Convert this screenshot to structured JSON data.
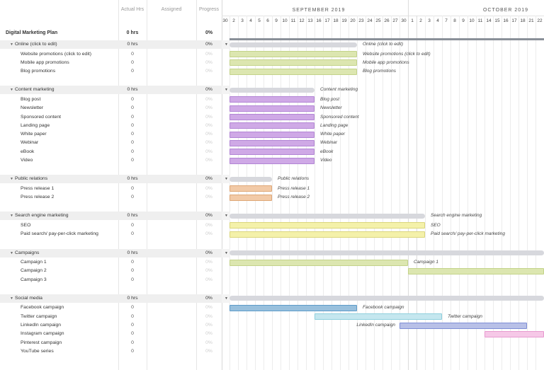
{
  "columns": {
    "actual_hrs": "Actual Hrs",
    "assigned": "Assigned",
    "progress": "Progress"
  },
  "months": [
    {
      "label": "SEPTEMBER 2019"
    },
    {
      "label": "OCTOBER 2019"
    }
  ],
  "days": [
    "30",
    "2",
    "3",
    "4",
    "5",
    "6",
    "9",
    "10",
    "11",
    "12",
    "13",
    "16",
    "17",
    "18",
    "19",
    "20",
    "23",
    "24",
    "25",
    "26",
    "27",
    "30",
    "1",
    "2",
    "3",
    "4",
    "7",
    "8",
    "9",
    "10",
    "11",
    "14",
    "15",
    "16",
    "17",
    "18",
    "21",
    "22"
  ],
  "plan": {
    "name": "Digital Marketing Plan",
    "hrs": "0 hrs",
    "progress": "0%"
  },
  "groups": [
    {
      "name": "Online (click to edit)",
      "hrs": "0 hrs",
      "progress": "0%",
      "start": 1,
      "end": 15,
      "label": "Online (click to edit)",
      "tasks": [
        {
          "name": "Website promotions (click to edit)",
          "hrs": "0",
          "progress": "0%",
          "start": 1,
          "end": 15,
          "label": "Website promotions (click to edit)",
          "color": "#dce6b0",
          "border": "#c3d38a"
        },
        {
          "name": "Mobile app promotions",
          "hrs": "0",
          "progress": "0%",
          "start": 1,
          "end": 15,
          "label": "Mobile app promotions",
          "color": "#dce6b0",
          "border": "#c3d38a"
        },
        {
          "name": "Blog promotions",
          "hrs": "0",
          "progress": "0%",
          "start": 1,
          "end": 15,
          "label": "Blog promotions",
          "color": "#dce6b0",
          "border": "#c3d38a"
        }
      ]
    },
    {
      "name": "Content marketing",
      "hrs": "0 hrs",
      "progress": "0%",
      "start": 1,
      "end": 10,
      "label": "Content marketing",
      "tasks": [
        {
          "name": "Blog post",
          "hrs": "0",
          "progress": "0%",
          "start": 1,
          "end": 10,
          "label": "Blog post",
          "color": "#cfa9e6",
          "border": "#b285d5"
        },
        {
          "name": "Newsletter",
          "hrs": "0",
          "progress": "0%",
          "start": 1,
          "end": 10,
          "label": "Newsletter",
          "color": "#cfa9e6",
          "border": "#b285d5"
        },
        {
          "name": "Sponsored content",
          "hrs": "0",
          "progress": "0%",
          "start": 1,
          "end": 10,
          "label": "Sponsored content",
          "color": "#cfa9e6",
          "border": "#b285d5"
        },
        {
          "name": "Landing page",
          "hrs": "0",
          "progress": "0%",
          "start": 1,
          "end": 10,
          "label": "Landing page",
          "color": "#cfa9e6",
          "border": "#b285d5"
        },
        {
          "name": "White paper",
          "hrs": "0",
          "progress": "0%",
          "start": 1,
          "end": 10,
          "label": "White paper",
          "color": "#cfa9e6",
          "border": "#b285d5"
        },
        {
          "name": "Webinar",
          "hrs": "0",
          "progress": "0%",
          "start": 1,
          "end": 10,
          "label": "Webinar",
          "color": "#cfa9e6",
          "border": "#b285d5"
        },
        {
          "name": "eBook",
          "hrs": "0",
          "progress": "0%",
          "start": 1,
          "end": 10,
          "label": "eBook",
          "color": "#cfa9e6",
          "border": "#b285d5"
        },
        {
          "name": "Video",
          "hrs": "0",
          "progress": "0%",
          "start": 1,
          "end": 10,
          "label": "Video",
          "color": "#cfa9e6",
          "border": "#b285d5"
        }
      ]
    },
    {
      "name": "Public relations",
      "hrs": "0 hrs",
      "progress": "0%",
      "start": 1,
      "end": 5,
      "label": "Public relations",
      "tasks": [
        {
          "name": "Press release 1",
          "hrs": "0",
          "progress": "0%",
          "start": 1,
          "end": 5,
          "label": "Press release 1",
          "color": "#f2caa7",
          "border": "#dea777"
        },
        {
          "name": "Press release 2",
          "hrs": "0",
          "progress": "0%",
          "start": 1,
          "end": 5,
          "label": "Press release 2",
          "color": "#f2caa7",
          "border": "#dea777"
        }
      ]
    },
    {
      "name": "Search engine marketing",
      "hrs": "0 hrs",
      "progress": "0%",
      "start": 1,
      "end": 23,
      "label": "Search engine marketing",
      "tasks": [
        {
          "name": "SEO",
          "hrs": "0",
          "progress": "0%",
          "start": 1,
          "end": 23,
          "label": "SEO",
          "color": "#f4f1aa",
          "border": "#dbd67b"
        },
        {
          "name": "Paid search/ pay-per-click marketing",
          "hrs": "0",
          "progress": "0%",
          "start": 1,
          "end": 23,
          "label": "Paid search/ pay-per-click marketing",
          "color": "#f4f1aa",
          "border": "#dbd67b"
        }
      ]
    },
    {
      "name": "Campaigns",
      "hrs": "0 hrs",
      "progress": "0%",
      "start": 1,
      "end": 40,
      "label": "",
      "tasks": [
        {
          "name": "Campaign 1",
          "hrs": "0",
          "progress": "0%",
          "start": 1,
          "end": 21,
          "label": "Campaign 1",
          "color": "#dce6b0",
          "border": "#c3d38a"
        },
        {
          "name": "Campaign 2",
          "hrs": "0",
          "progress": "0%",
          "start": 22,
          "end": 40,
          "label": "",
          "color": "#dce6b0",
          "border": "#c3d38a"
        },
        {
          "name": "Campaign 3",
          "hrs": "0",
          "progress": "0%",
          "start": null,
          "end": null,
          "label": ""
        }
      ]
    },
    {
      "name": "Social media",
      "hrs": "0 hrs",
      "progress": "0%",
      "start": 1,
      "end": 40,
      "label": "",
      "tasks": [
        {
          "name": "Facebook campaign",
          "hrs": "0",
          "progress": "0%",
          "start": 1,
          "end": 15,
          "label": "Facebook campaign",
          "color": "#98c0dd",
          "border": "#5e9bc8"
        },
        {
          "name": "Twitter campaign",
          "hrs": "0",
          "progress": "0%",
          "start": 11,
          "end": 25,
          "label": "Twitter campaign",
          "color": "#c5e7ef",
          "border": "#8ecfdd"
        },
        {
          "name": "LinkedIn campaign",
          "hrs": "0",
          "progress": "0%",
          "start": 21,
          "end": 35,
          "label": "LinkedIn campaign",
          "color": "#b8c0e7",
          "border": "#7e8ed6"
        },
        {
          "name": "Instagram campaign",
          "hrs": "0",
          "progress": "0%",
          "start": 31,
          "end": 40,
          "label": "",
          "color": "#f6c8e7",
          "border": "#e89bd0"
        },
        {
          "name": "Pinterest campaign",
          "hrs": "0",
          "progress": "0%",
          "start": null,
          "end": null,
          "label": ""
        },
        {
          "name": "YouTube series",
          "hrs": "0",
          "progress": "0%",
          "start": null,
          "end": null,
          "label": ""
        }
      ]
    }
  ]
}
